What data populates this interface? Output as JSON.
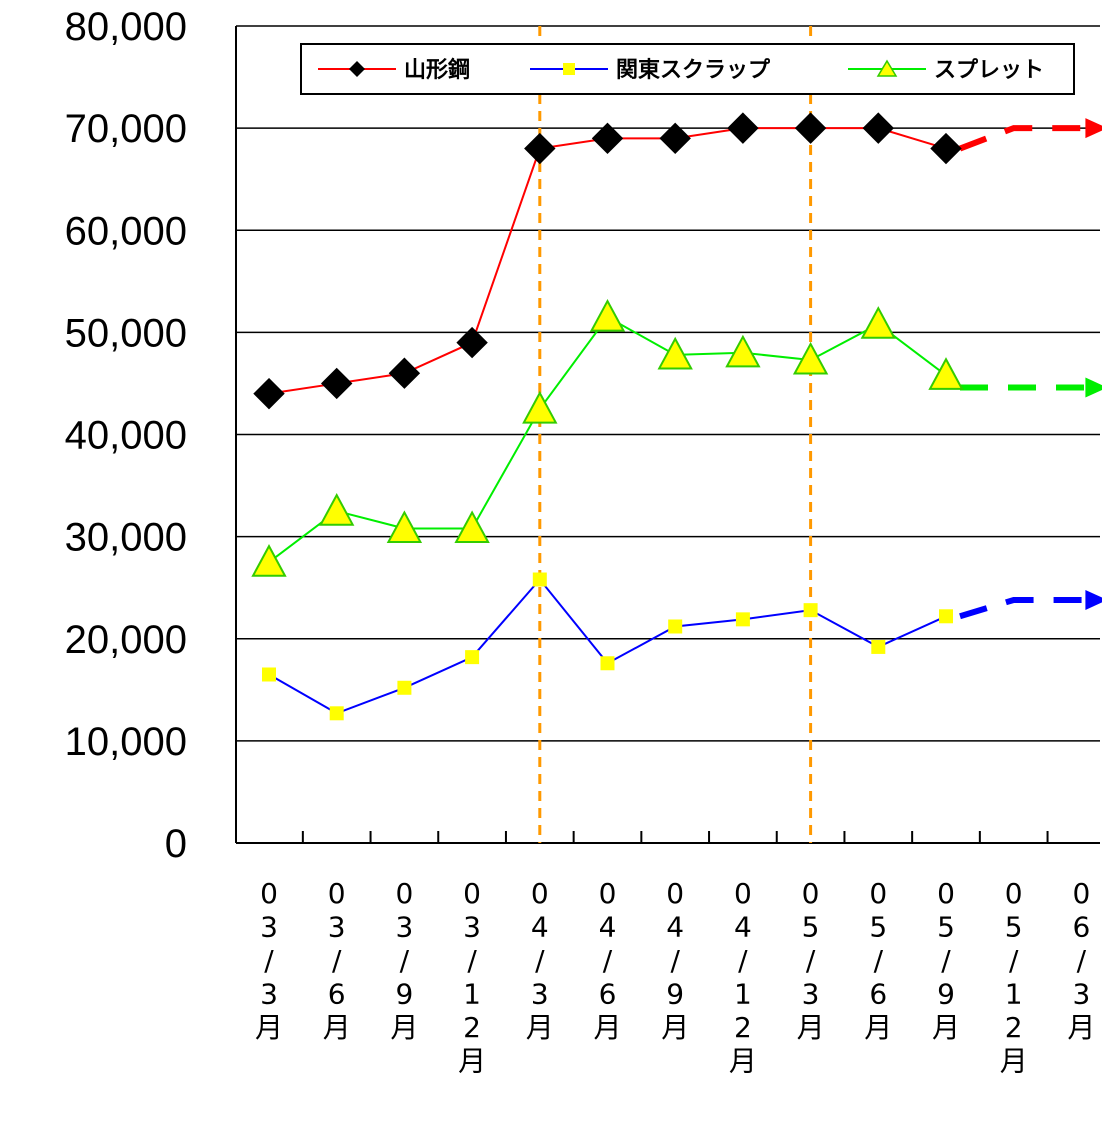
{
  "chart_data": {
    "type": "line",
    "x": [
      "03/3月",
      "03/6月",
      "03/9月",
      "03/12月",
      "04/3月",
      "04/6月",
      "04/9月",
      "04/12月",
      "05/3月",
      "05/6月",
      "05/9月",
      "05/12月",
      "06/3月"
    ],
    "ylim": [
      0,
      80000
    ],
    "yticks": [
      "0",
      "10,000",
      "20,000",
      "30,000",
      "40,000",
      "50,000",
      "60,000",
      "70,000",
      "80,000"
    ],
    "grid": true,
    "legend_position": "top",
    "series": [
      {
        "name": "山形鋼",
        "color": "#ff0000",
        "marker": "diamond",
        "marker_color": "#000000",
        "values": [
          44000,
          45000,
          46000,
          49000,
          68000,
          69000,
          69000,
          70000,
          70000,
          70000,
          68000,
          null,
          null
        ],
        "forecast_values": [
          68000,
          70000,
          70000
        ]
      },
      {
        "name": "関東スクラップ",
        "color": "#0000ff",
        "marker": "square",
        "marker_color": "#ffff00",
        "values": [
          16500,
          12700,
          15200,
          18200,
          25800,
          17600,
          21200,
          21900,
          22800,
          19200,
          22200,
          null,
          null
        ],
        "forecast_values": [
          22200,
          23800,
          23800
        ]
      },
      {
        "name": "スプレット",
        "color": "#00ee00",
        "marker": "triangle",
        "marker_color": "#ffff00",
        "values": [
          27500,
          32500,
          30800,
          30800,
          42500,
          51500,
          47800,
          48000,
          47300,
          50800,
          45800,
          null,
          null
        ],
        "forecast_values": [
          44600,
          44600,
          44600
        ]
      }
    ],
    "reference_lines": [
      {
        "category": "04/3月",
        "color": "#ff9900"
      },
      {
        "category": "05/3月",
        "color": "#ff9900"
      }
    ]
  }
}
